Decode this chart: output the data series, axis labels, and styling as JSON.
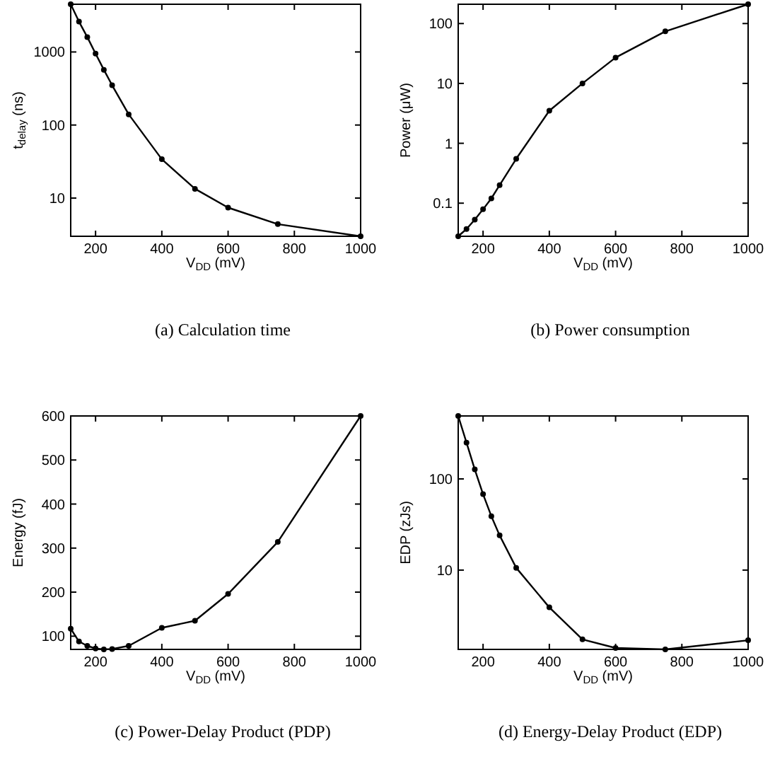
{
  "chart_data": [
    {
      "type": "line",
      "title": "(a) Calculation time",
      "xlabel": "V$_{DD}$ (mV)",
      "ylabel": "t$_{delay}$ (ns)",
      "log": "y",
      "marker": "circle",
      "line_style": "solid",
      "grid": false,
      "xlim": [
        125,
        1000
      ],
      "ylim": [
        3,
        4500
      ],
      "xticks": [
        200,
        400,
        600,
        800,
        1000
      ],
      "yticks": [
        10,
        100,
        1000
      ],
      "x": [
        125,
        150,
        175,
        200,
        225,
        250,
        300,
        400,
        500,
        600,
        750,
        1000
      ],
      "series": [
        {
          "color": "#000000",
          "values": [
            4500,
            2600,
            1600,
            950,
            570,
            350,
            140,
            34,
            13.4,
            7.4,
            4.4,
            3.0
          ]
        }
      ]
    },
    {
      "type": "line",
      "title": "(b) Power consumption",
      "xlabel": "V$_{DD}$ (mV)",
      "ylabel": "Power (μW)",
      "log": "y",
      "marker": "circle",
      "line_style": "solid",
      "grid": false,
      "xlim": [
        125,
        1000
      ],
      "ylim": [
        0.028,
        210
      ],
      "xticks": [
        200,
        400,
        600,
        800,
        1000
      ],
      "yticks": [
        0.1,
        1,
        10,
        100
      ],
      "x": [
        125,
        150,
        175,
        200,
        225,
        250,
        300,
        400,
        500,
        600,
        750,
        1000
      ],
      "series": [
        {
          "color": "#000000",
          "values": [
            0.028,
            0.037,
            0.053,
            0.079,
            0.12,
            0.2,
            0.55,
            3.5,
            10,
            27,
            74,
            210
          ]
        }
      ]
    },
    {
      "type": "line",
      "title": "(c) Power-Delay Product (PDP)",
      "xlabel": "V$_{DD}$ (mV)",
      "ylabel": "Energy (fJ)",
      "marker": "circle",
      "line_style": "solid",
      "grid": false,
      "xlim": [
        125,
        1000
      ],
      "ylim": [
        70,
        600
      ],
      "xticks": [
        200,
        400,
        600,
        800,
        1000
      ],
      "yticks": [
        100,
        200,
        300,
        400,
        500,
        600
      ],
      "x": [
        125,
        150,
        175,
        200,
        225,
        250,
        300,
        400,
        500,
        600,
        750,
        1000
      ],
      "series": [
        {
          "color": "#000000",
          "values": [
            117,
            88,
            78,
            72,
            70,
            71,
            78,
            119,
            135,
            196,
            314,
            600
          ]
        }
      ]
    },
    {
      "type": "line",
      "title": "(d) Energy-Delay Product (EDP)",
      "xlabel": "V$_{DD}$ (mV)",
      "ylabel": "EDP (zJs)",
      "log": "y",
      "marker": "circle",
      "line_style": "solid",
      "grid": false,
      "xlim": [
        125,
        1000
      ],
      "ylim": [
        1.35,
        490
      ],
      "xticks": [
        200,
        400,
        600,
        800,
        1000
      ],
      "yticks": [
        10,
        100
      ],
      "x": [
        125,
        150,
        175,
        200,
        225,
        250,
        300,
        400,
        500,
        600,
        750,
        1000
      ],
      "series": [
        {
          "color": "#000000",
          "values": [
            490,
            250,
            127,
            68,
            39,
            24,
            10.6,
            3.9,
            1.74,
            1.4,
            1.35,
            1.7
          ]
        }
      ]
    }
  ]
}
